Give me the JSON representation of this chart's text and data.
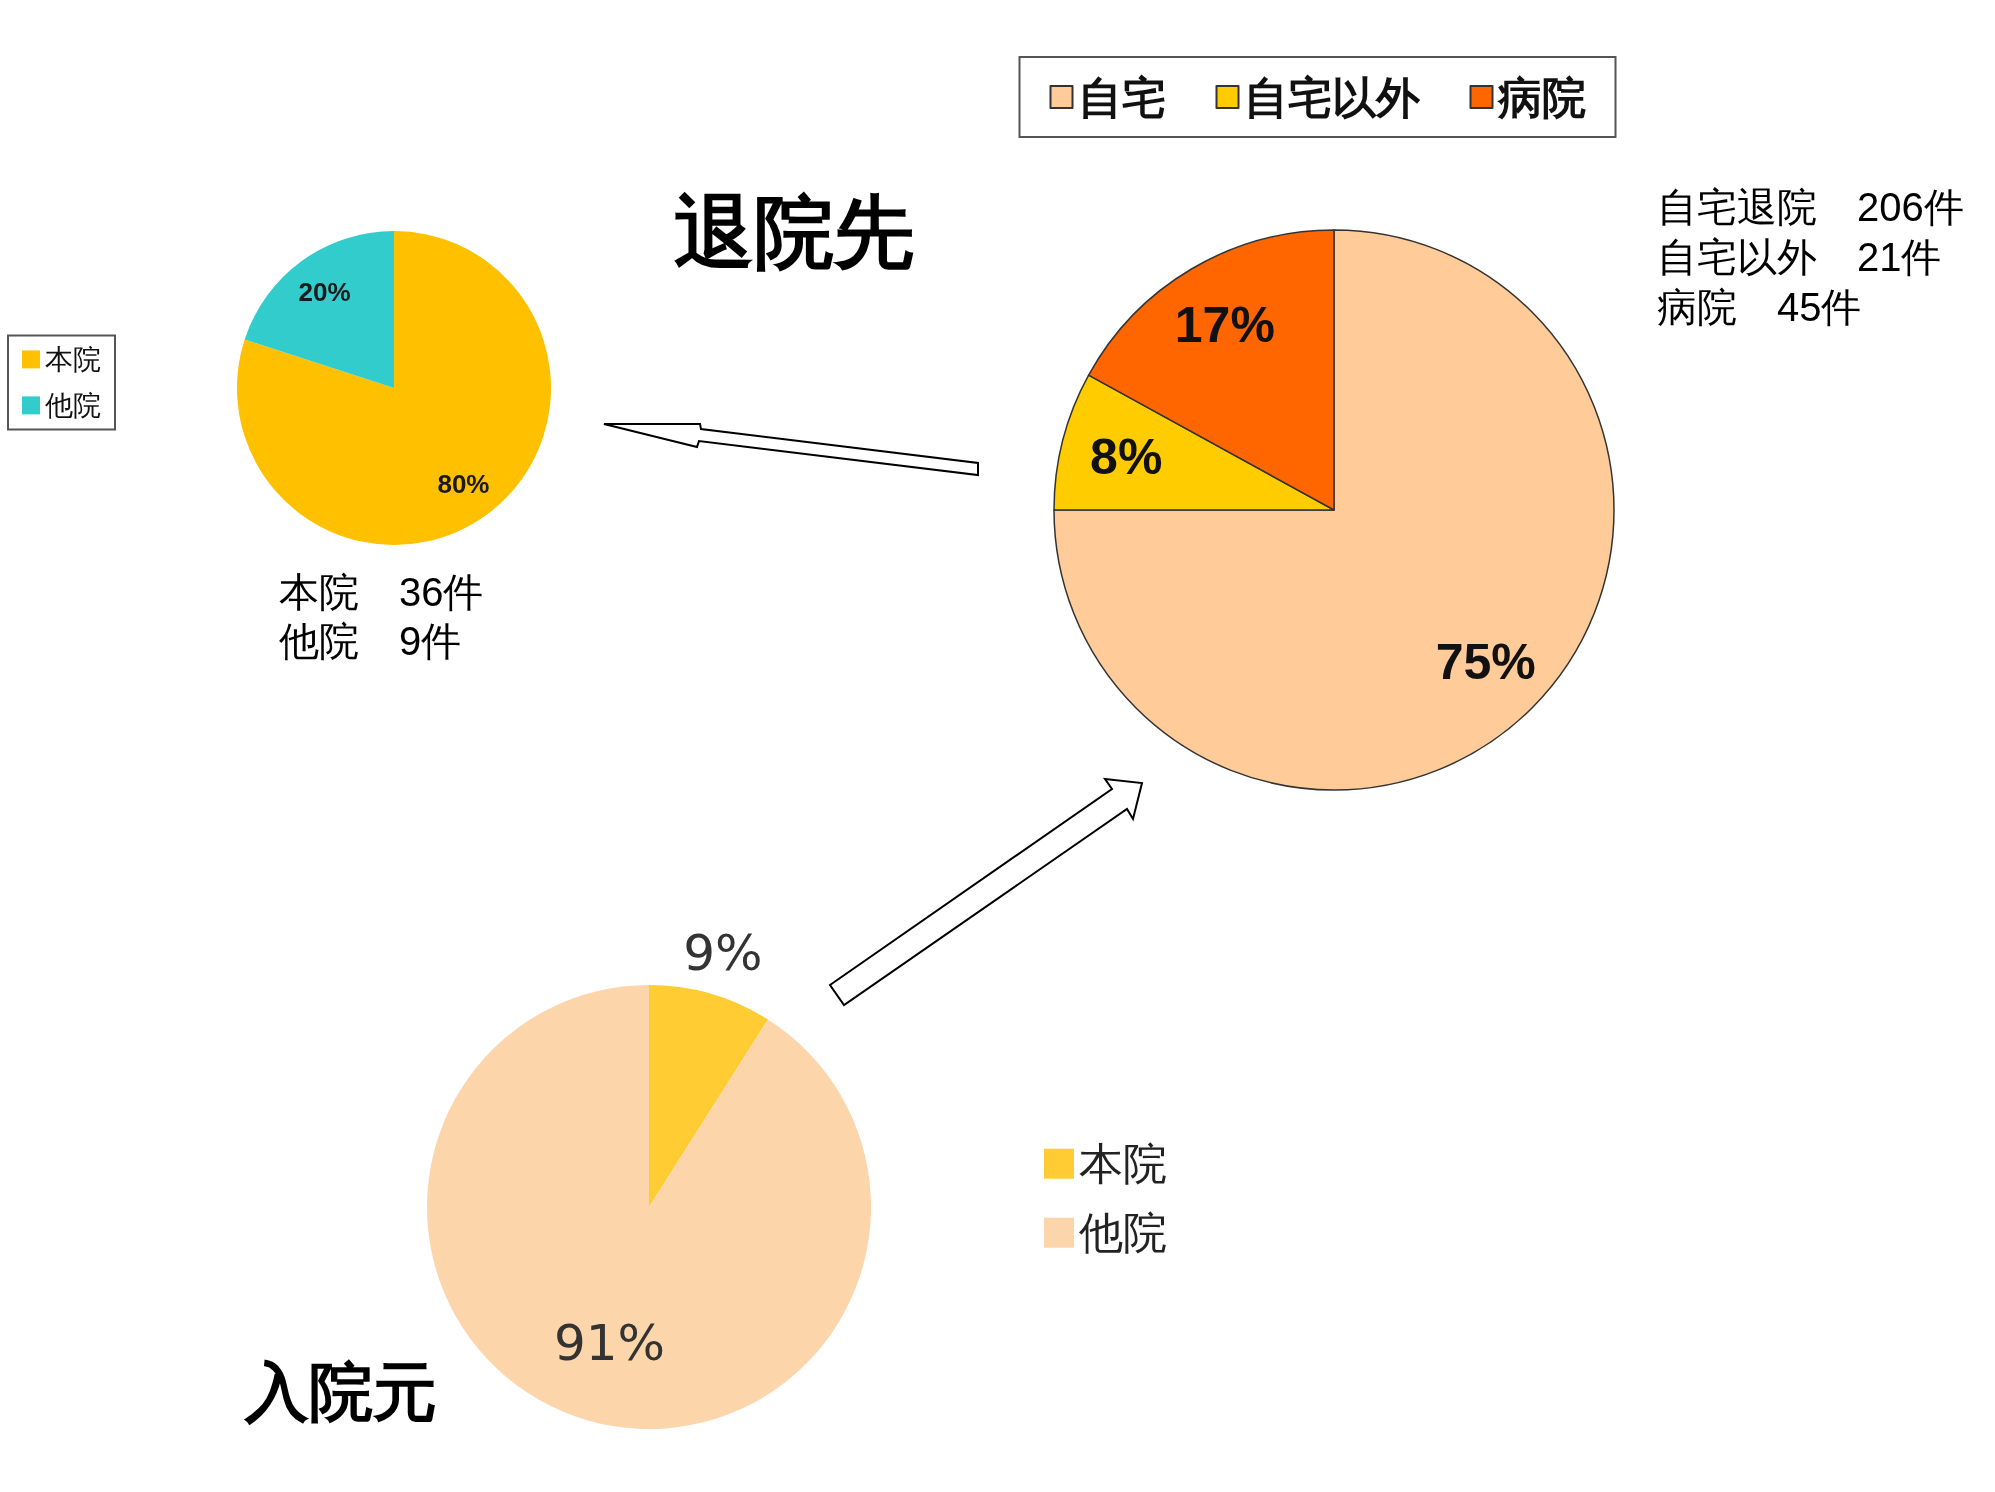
{
  "chart_data": [
    {
      "type": "pie",
      "categories": [
        "本院",
        "他院"
      ],
      "values": [
        80,
        20
      ],
      "colors": [
        "#ffc000",
        "#33cccc"
      ],
      "value_labels": [
        "80%",
        "20%"
      ],
      "legend": "left",
      "annotations": [
        "本院　36件",
        "他院　9件"
      ]
    },
    {
      "type": "pie",
      "title": "退院先",
      "categories": [
        "自宅",
        "自宅以外",
        "病院"
      ],
      "values": [
        75,
        8,
        17
      ],
      "colors": [
        "#ffcc99",
        "#ffcc00",
        "#ff6600"
      ],
      "value_labels": [
        "75%",
        "8%",
        "17%"
      ],
      "legend": "top",
      "annotations": [
        "自宅退院　206件",
        "自宅以外　21件",
        "病院　45件"
      ]
    },
    {
      "type": "pie",
      "title": "入院元",
      "categories": [
        "本院",
        "他院"
      ],
      "values": [
        9,
        91
      ],
      "colors": [
        "#ffcc33",
        "#fcd5ab"
      ],
      "value_labels": [
        "9%",
        "91%"
      ],
      "legend": "right"
    }
  ]
}
